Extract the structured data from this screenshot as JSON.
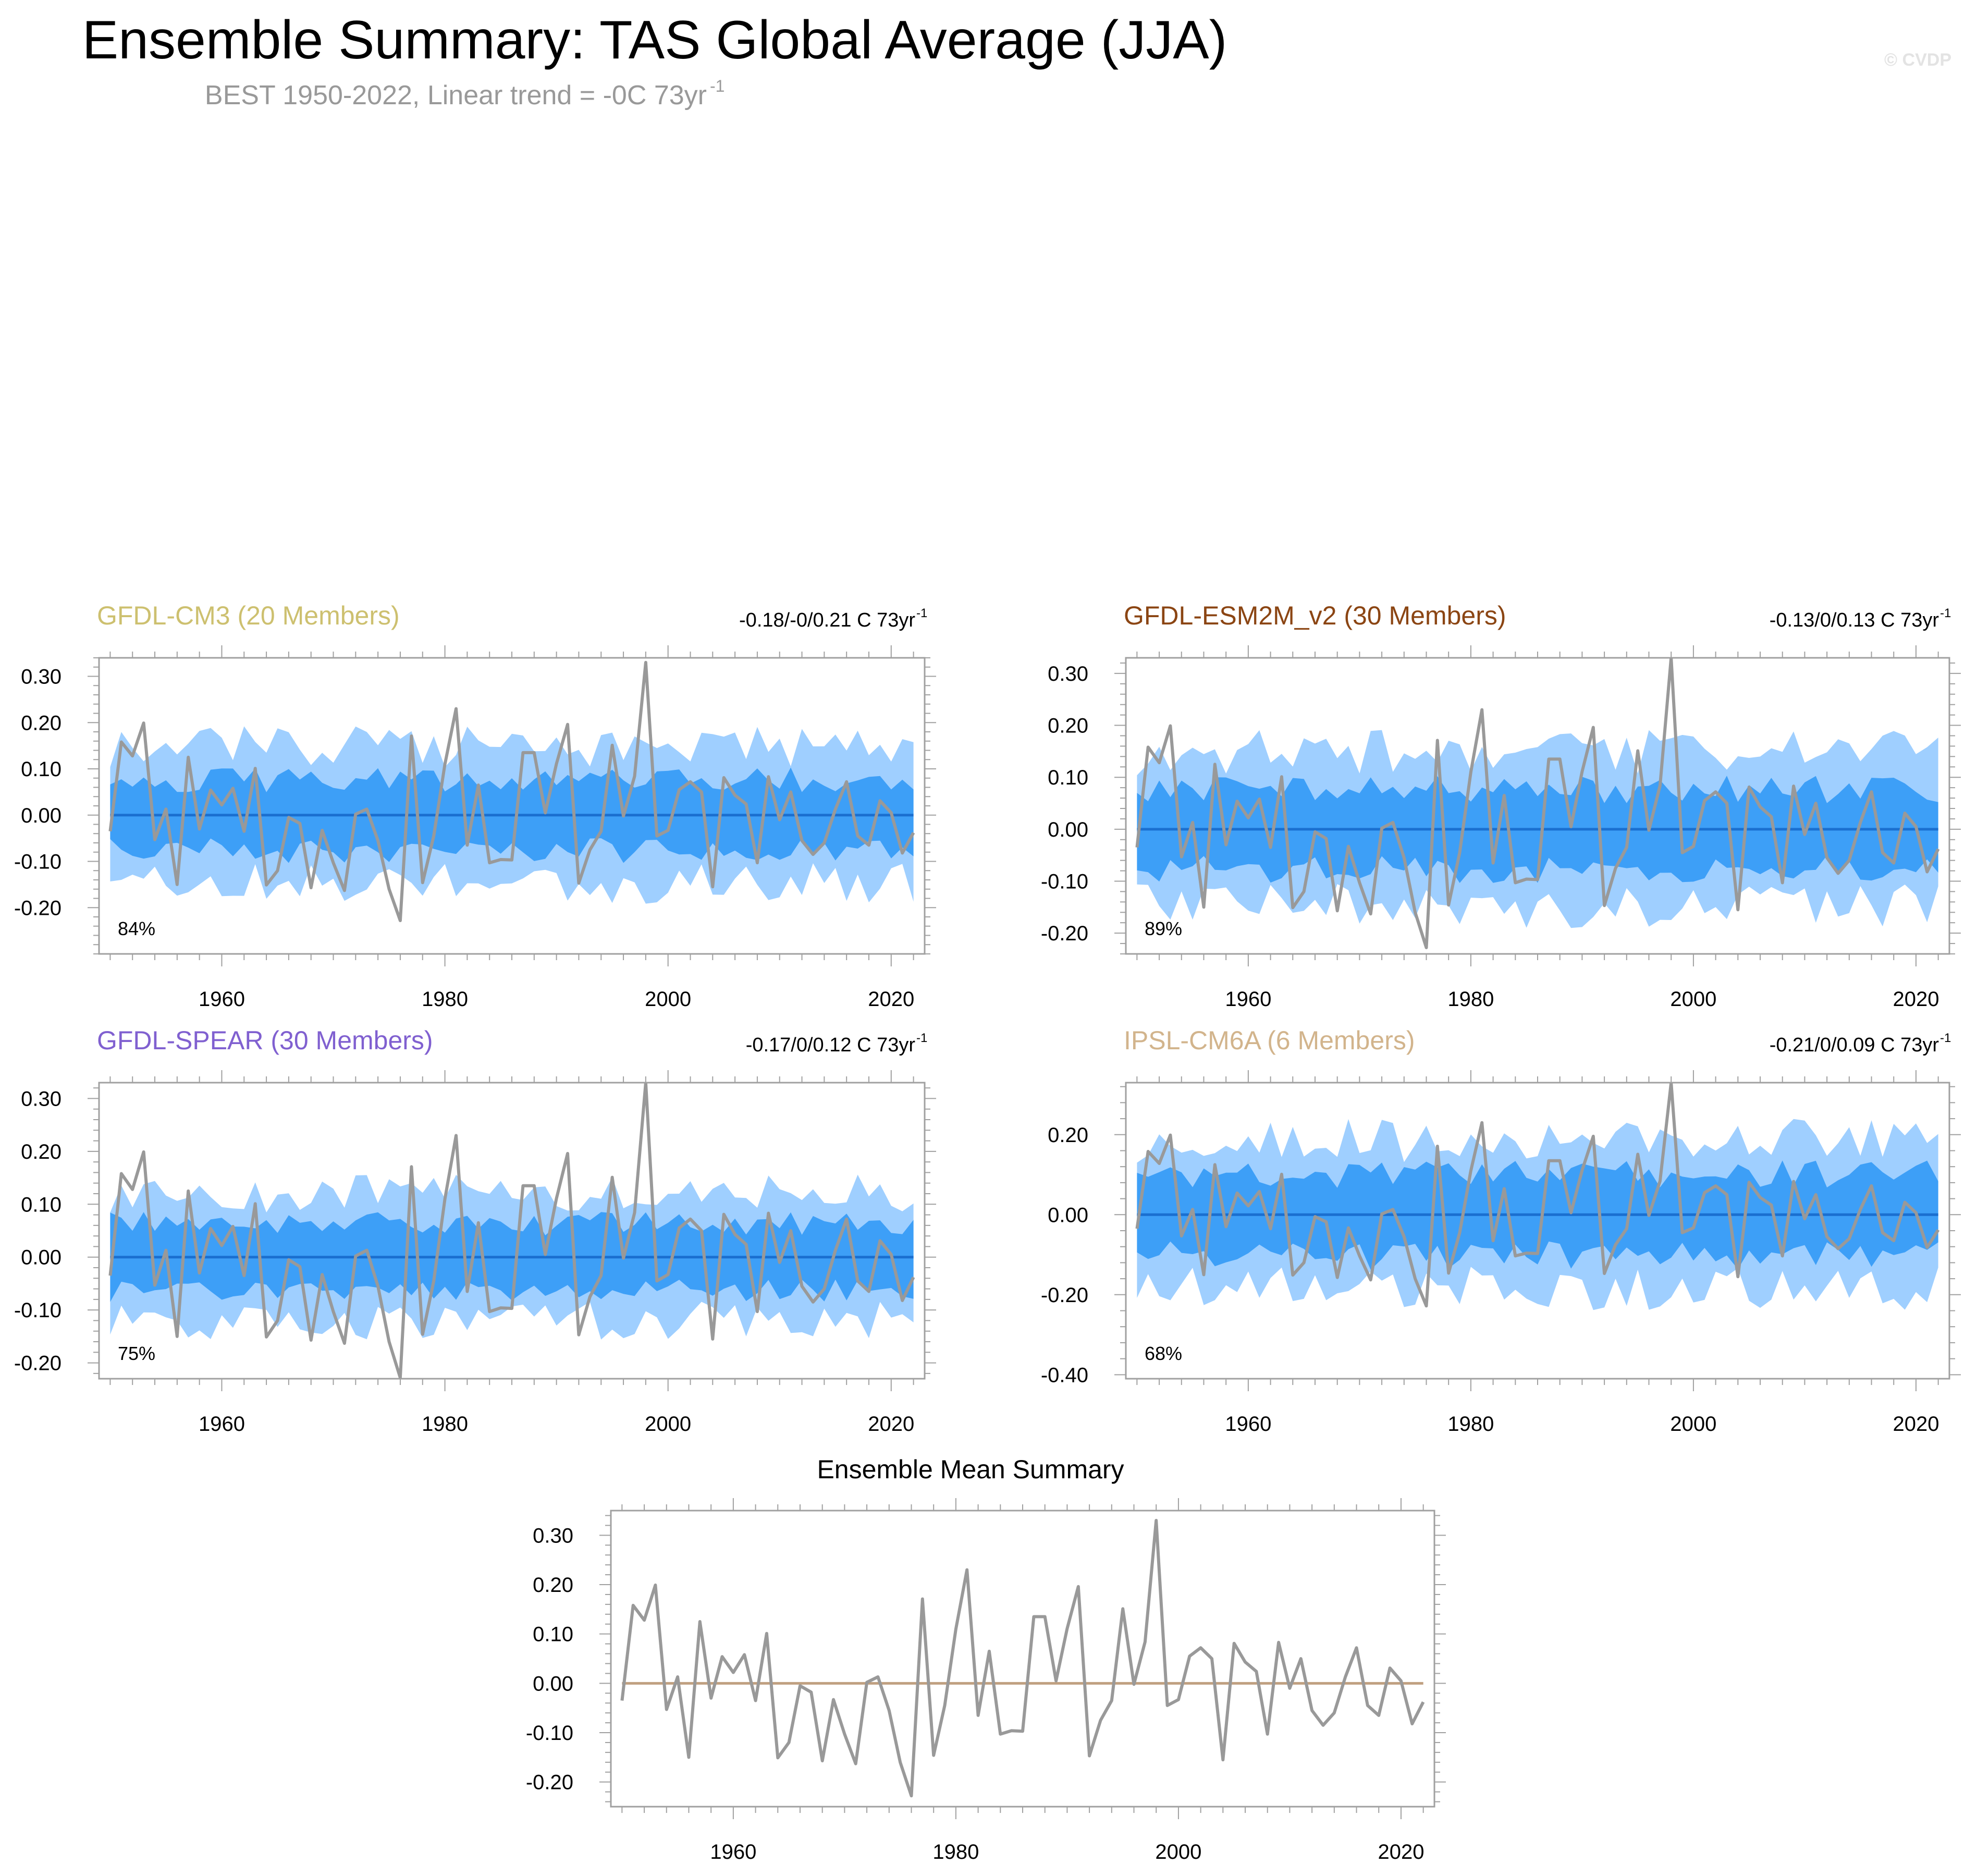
{
  "title": "Ensemble Summary: TAS Global Average (JJA)",
  "subtitle": {
    "text": "BEST 1950-2022, Linear trend = -0C 73yr",
    "sup": "-1"
  },
  "copyright": "© CVDP",
  "colors": {
    "outer_band": "#9fcfff",
    "inner_band": "#3d9ff7",
    "mean_line": "#1a6fd0",
    "obs_line": "#999999",
    "summary_mean_line": "#c0a080"
  },
  "chart_data": [
    {
      "id": "gfdl-cm3",
      "type": "area",
      "title": "GFDL-CM3 (20 Members)",
      "title_color": "#cdc06f",
      "trend_text": "-0.18/-0/0.21 C 73yr",
      "trend_sup": "-1",
      "percent_label": "84%",
      "xlim": [
        1949,
        2023
      ],
      "ylim": [
        -0.3,
        0.34
      ],
      "yticks": [
        -0.2,
        -0.1,
        0.0,
        0.1,
        0.2,
        0.3
      ],
      "ytick_labels": [
        "-0.20",
        "-0.10",
        "0.00",
        "0.10",
        "0.20",
        "0.30"
      ],
      "xticks": [
        1960,
        1980,
        2000,
        2020
      ],
      "xtick_labels": [
        "1960",
        "1980",
        "2000",
        "2020"
      ],
      "outer_amp": 0.16,
      "inner_amp": 0.09,
      "seed": 11
    },
    {
      "id": "gfdl-esm2m-v2",
      "type": "area",
      "title": "GFDL-ESM2M_v2 (30 Members)",
      "title_color": "#8b4513",
      "trend_text": "-0.13/0/0.13 C 73yr",
      "trend_sup": "-1",
      "percent_label": "89%",
      "xlim": [
        1949,
        2023
      ],
      "ylim": [
        -0.24,
        0.33
      ],
      "yticks": [
        -0.2,
        -0.1,
        0.0,
        0.1,
        0.2,
        0.3
      ],
      "ytick_labels": [
        "-0.20",
        "-0.10",
        "0.00",
        "0.10",
        "0.20",
        "0.30"
      ],
      "xticks": [
        1960,
        1980,
        2000,
        2020
      ],
      "xtick_labels": [
        "1960",
        "1980",
        "2000",
        "2020"
      ],
      "outer_amp": 0.16,
      "inner_amp": 0.09,
      "seed": 23
    },
    {
      "id": "gfdl-spear",
      "type": "area",
      "title": "GFDL-SPEAR (30 Members)",
      "title_color": "#8060d0",
      "trend_text": "-0.17/0/0.12 C 73yr",
      "trend_sup": "-1",
      "percent_label": "75%",
      "xlim": [
        1949,
        2023
      ],
      "ylim": [
        -0.23,
        0.33
      ],
      "yticks": [
        -0.2,
        -0.1,
        0.0,
        0.1,
        0.2,
        0.3
      ],
      "ytick_labels": [
        "-0.20",
        "-0.10",
        "0.00",
        "0.10",
        "0.20",
        "0.30"
      ],
      "xticks": [
        1960,
        1980,
        2000,
        2020
      ],
      "xtick_labels": [
        "1960",
        "1980",
        "2000",
        "2020"
      ],
      "outer_amp": 0.13,
      "inner_amp": 0.075,
      "seed": 37
    },
    {
      "id": "ipsl-cm6a",
      "type": "area",
      "title": "IPSL-CM6A (6 Members)",
      "title_color": "#d2b48c",
      "trend_text": "-0.21/0/0.09 C 73yr",
      "trend_sup": "-1",
      "percent_label": "68%",
      "xlim": [
        1949,
        2023
      ],
      "ylim": [
        -0.41,
        0.33
      ],
      "yticks": [
        -0.4,
        -0.2,
        0.0,
        0.2
      ],
      "ytick_labels": [
        "-0.40",
        "-0.20",
        "0.00",
        "0.20"
      ],
      "xticks": [
        1960,
        1980,
        2000,
        2020
      ],
      "xtick_labels": [
        "1960",
        "1980",
        "2000",
        "2020"
      ],
      "outer_amp": 0.2,
      "inner_amp": 0.12,
      "seed": 51
    },
    {
      "id": "ensemble-mean",
      "type": "line",
      "title": "Ensemble Mean Summary",
      "title_color": "#000000",
      "xlim": [
        1949,
        2023
      ],
      "ylim": [
        -0.25,
        0.35
      ],
      "yticks": [
        -0.2,
        -0.1,
        0.0,
        0.1,
        0.2,
        0.3
      ],
      "ytick_labels": [
        "-0.20",
        "-0.10",
        "0.00",
        "0.10",
        "0.20",
        "0.30"
      ],
      "xticks": [
        1960,
        1980,
        2000,
        2020
      ],
      "xtick_labels": [
        "1960",
        "1980",
        "2000",
        "2020"
      ],
      "ensemble_mean_values": [
        0.0,
        0.0
      ]
    }
  ],
  "observations": {
    "name": "BEST",
    "years": [
      1950,
      2022
    ],
    "values": [
      -0.035,
      0.158,
      0.128,
      0.199,
      -0.053,
      0.013,
      -0.15,
      0.125,
      -0.03,
      0.054,
      0.022,
      0.058,
      -0.035,
      0.101,
      -0.151,
      -0.12,
      -0.005,
      -0.018,
      -0.157,
      -0.033,
      -0.103,
      -0.163,
      0.002,
      0.013,
      -0.055,
      -0.16,
      -0.228,
      0.171,
      -0.146,
      -0.045,
      0.11,
      0.23,
      -0.065,
      0.065,
      -0.103,
      -0.096,
      -0.097,
      0.135,
      0.135,
      0.005,
      0.111,
      0.196,
      -0.147,
      -0.075,
      -0.035,
      0.151,
      -0.002,
      0.084,
      0.33,
      -0.045,
      -0.033,
      0.055,
      0.072,
      0.05,
      -0.155,
      0.081,
      0.043,
      0.024,
      -0.103,
      0.083,
      -0.01,
      0.05,
      -0.055,
      -0.085,
      -0.06,
      0.013,
      0.072,
      -0.045,
      -0.065,
      0.031,
      0.005,
      -0.082,
      -0.038
    ]
  }
}
